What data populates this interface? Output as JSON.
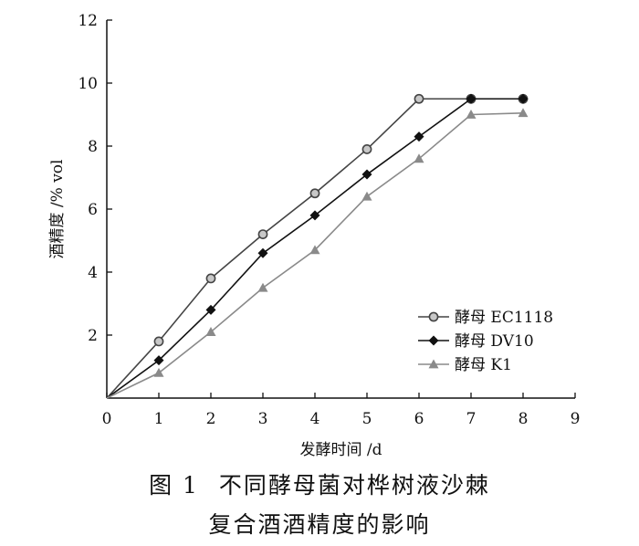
{
  "chart_data": {
    "type": "line",
    "xlabel": "发酵时间 /d",
    "ylabel": "酒精度 /% vol",
    "xlim": [
      0,
      9
    ],
    "ylim": [
      0,
      12
    ],
    "xticks": [
      0,
      1,
      2,
      3,
      4,
      5,
      6,
      7,
      8,
      9
    ],
    "yticks": [
      2,
      4,
      6,
      8,
      10,
      12
    ],
    "x_tick_labels": [
      "0",
      "1",
      "2",
      "3",
      "4",
      "5",
      "6",
      "7",
      "8",
      "9"
    ],
    "y_tick_labels": [
      "2",
      "4",
      "6",
      "8",
      "10",
      "12"
    ],
    "grid": false,
    "legend_position": "lower-right",
    "x": [
      0,
      1,
      2,
      3,
      4,
      5,
      6,
      7,
      8
    ],
    "series": [
      {
        "name": "酵母 EC1118",
        "marker": "circle",
        "color": "#444444",
        "values": [
          0,
          1.8,
          3.8,
          5.2,
          6.5,
          7.9,
          9.5,
          9.5,
          9.5
        ]
      },
      {
        "name": "酵母 DV10",
        "marker": "diamond",
        "color": "#111111",
        "values": [
          0,
          1.2,
          2.8,
          4.6,
          5.8,
          7.1,
          8.3,
          9.5,
          9.5
        ]
      },
      {
        "name": "酵母 K1",
        "marker": "triangle",
        "color": "#8a8a8a",
        "values": [
          0,
          0.8,
          2.1,
          3.5,
          4.7,
          6.4,
          7.6,
          9.0,
          9.05
        ]
      }
    ]
  },
  "caption": {
    "label": "图 1",
    "line1": "不同酵母菌对桦树液沙棘",
    "line2": "复合酒酒精度的影响"
  }
}
